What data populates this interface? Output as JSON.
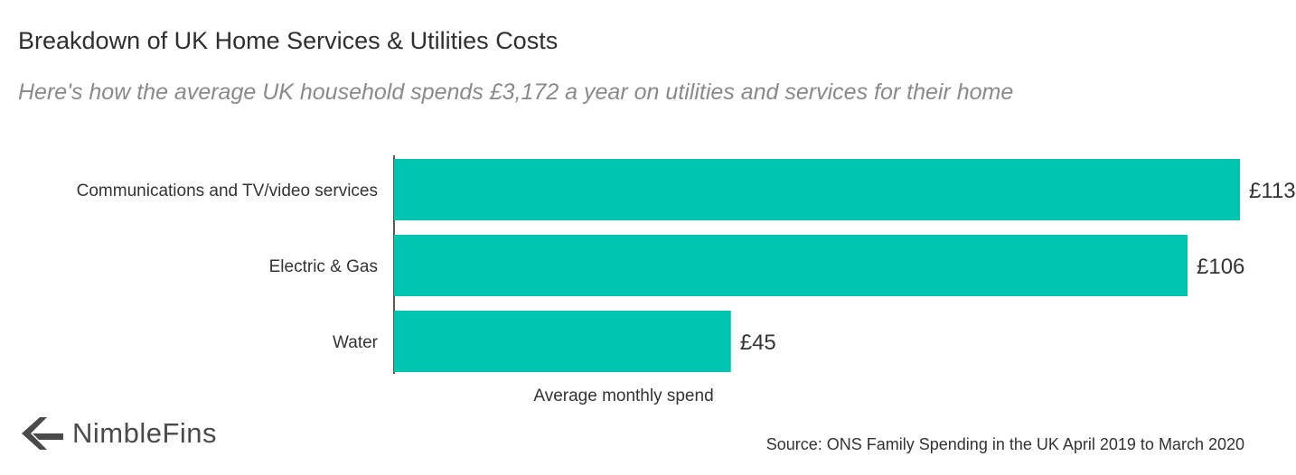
{
  "title": "Breakdown of UK Home Services & Utilities Costs",
  "subtitle": "Here's how the average UK household spends £3,172 a year on utilities and services for their home",
  "logo": {
    "icon": "chevron-left-icon",
    "text": "NimbleFins"
  },
  "source": "Source: ONS Family Spending in the UK April 2019 to March 2020",
  "colors": {
    "bar": "#00c5ae",
    "text": "#333333",
    "subtitle": "#8a8a8a",
    "logo": "#4a4a4a"
  },
  "chart_data": {
    "type": "bar",
    "orientation": "horizontal",
    "title": "Breakdown of UK Home Services & Utilities Costs",
    "subtitle": "Here's how the average UK household spends £3,172 a year on utilities and services for their home",
    "xlabel": "Average monthly spend",
    "ylabel": "",
    "categories": [
      "Communications and TV/video services",
      "Electric & Gas",
      "Water"
    ],
    "values": [
      113,
      106,
      45
    ],
    "value_labels": [
      "£113",
      "£106",
      "£45"
    ],
    "xlim": [
      0,
      113
    ],
    "grid": false,
    "legend": "none"
  }
}
